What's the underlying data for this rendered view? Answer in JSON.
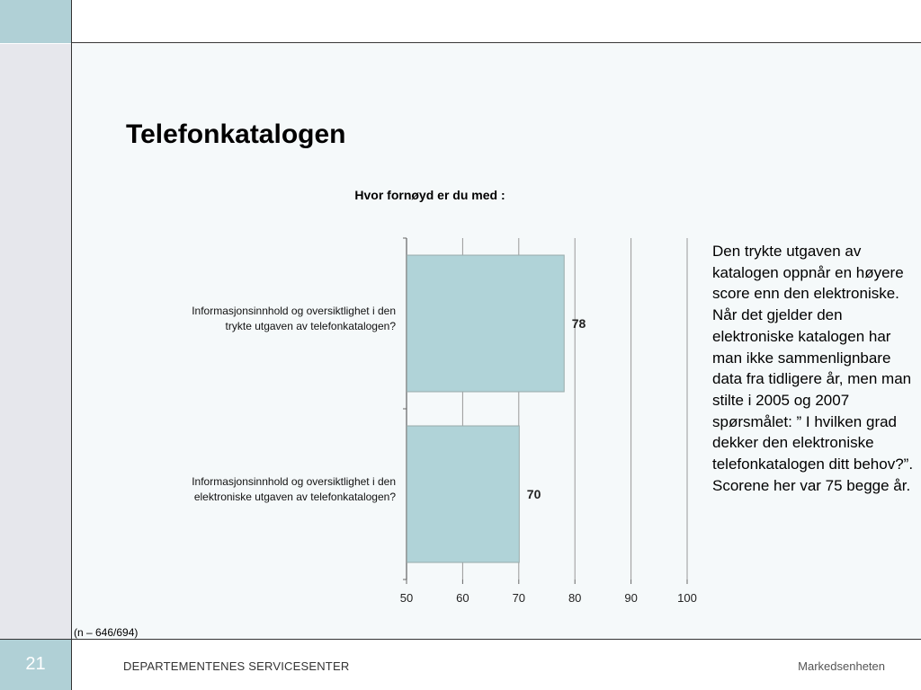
{
  "slide": {
    "title": "Telefonkatalogen",
    "page_number": "21",
    "organization": "DEPARTEMENTENES SERVICESENTER",
    "unit": "Markedsenheten",
    "sample_note": "(n – 646/694)",
    "side_text": "Den trykte utgaven av katalogen oppnår en høyere score enn den elektroniske. Når det gjelder den elektroniske katalogen har man ikke sammenlignbare data fra tidligere år, men man stilte i 2005 og 2007 spørsmålet: ” I hvilken grad dekker den elektroniske telefonkatalogen ditt behov?”. Scorene her var 75 begge år."
  },
  "colors": {
    "bar": "#b0d3d8",
    "accent": "#b0d0d6",
    "panel": "#e6e7ec"
  },
  "chart_data": {
    "type": "bar",
    "orientation": "horizontal",
    "title": "Hvor fornøyd er du med :",
    "categories": [
      [
        "Informasjonsinnhold og oversiktlighet i den",
        "trykte utgaven av telefonkatalogen?"
      ],
      [
        "Informasjonsinnhold og oversiktlighet i den",
        "elektroniske utgaven av telefonkatalogen?"
      ]
    ],
    "values": [
      78,
      70
    ],
    "data_labels": [
      "78",
      "70"
    ],
    "xlim": [
      50,
      100
    ],
    "xticks": [
      50,
      60,
      70,
      80,
      90,
      100
    ],
    "grid": true
  }
}
